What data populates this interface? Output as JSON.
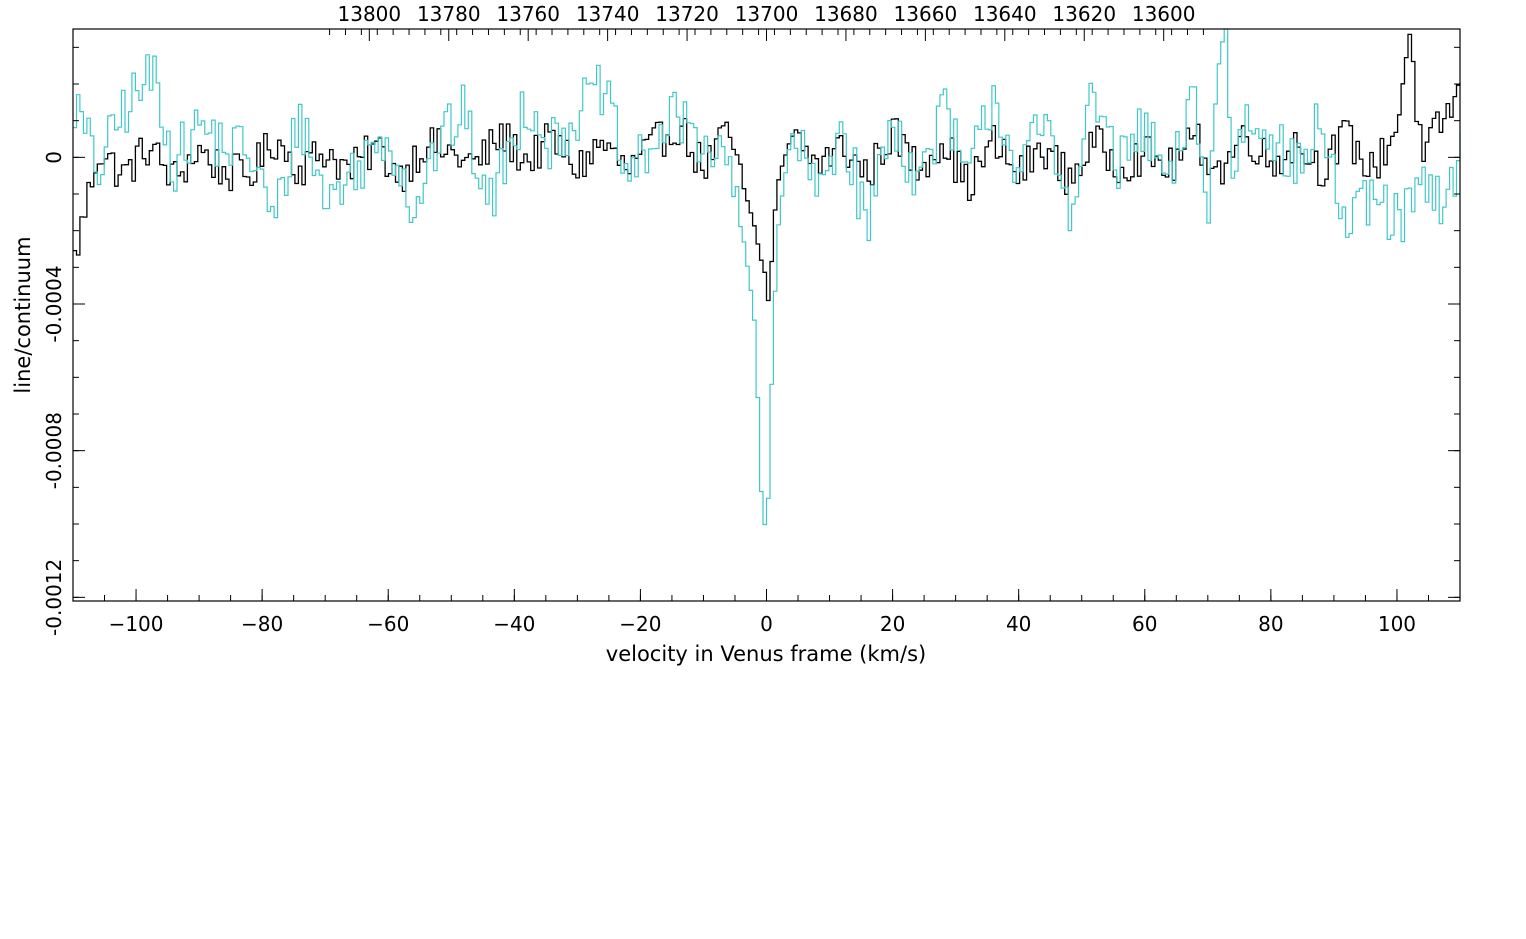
{
  "chart_data": {
    "type": "line",
    "title": "",
    "xlabel": "velocity in Venus frame (km/s)",
    "ylabel": "line/continuum",
    "top_axis_label": "",
    "xlim": [
      -110,
      110
    ],
    "ylim": [
      -0.00121,
      0.00035
    ],
    "x_ticks": [
      -100,
      -80,
      -60,
      -40,
      -20,
      0,
      20,
      40,
      60,
      80,
      100
    ],
    "x_tick_labels": [
      "−100",
      "−80",
      "−60",
      "−40",
      "−20",
      "0",
      "20",
      "40",
      "60",
      "80",
      "100"
    ],
    "y_ticks": [
      0,
      -0.0004,
      -0.0008,
      -0.0012
    ],
    "y_tick_labels": [
      "0",
      "-0.0004",
      "-0.0008",
      "-0.0012"
    ],
    "top_ticks": [
      13800,
      13780,
      13760,
      13740,
      13720,
      13700,
      13680,
      13660,
      13640,
      13620,
      13600
    ],
    "top_tick_labels": [
      "13800",
      "13780",
      "13760",
      "13740",
      "13720",
      "13700",
      "13680",
      "13660",
      "13640",
      "13620",
      "13600"
    ],
    "top_axis_velocity_at_13700": 0,
    "top_axis_km_per_unit": -0.63,
    "grid": false,
    "step_style": "histogram",
    "series": [
      {
        "color": "#000000",
        "x": [
          -110,
          -106,
          -102,
          -98,
          -94,
          -90,
          -86,
          -82,
          -78,
          -74,
          -70,
          -66,
          -62,
          -58,
          -54,
          -50,
          -46,
          -42,
          -38,
          -34,
          -30,
          -26,
          -22,
          -18,
          -14,
          -10,
          -6,
          -4,
          -2,
          -1,
          0,
          0.5,
          1,
          2,
          4,
          8,
          12,
          16,
          20,
          24,
          28,
          32,
          36,
          40,
          44,
          48,
          52,
          56,
          60,
          64,
          68,
          72,
          76,
          80,
          84,
          88,
          92,
          96,
          100,
          102,
          104,
          106,
          110
        ],
        "y": [
          -0.0003,
          2e-05,
          -5e-05,
          3e-05,
          -6e-05,
          2e-05,
          -4e-05,
          -5e-05,
          5e-05,
          -3e-05,
          2e-05,
          -4e-05,
          3e-05,
          -5e-05,
          4e-05,
          1e-05,
          -2e-05,
          6e-05,
          -1e-05,
          5e-05,
          -3e-05,
          4e-05,
          -4e-05,
          3e-05,
          9e-05,
          -3e-05,
          7e-05,
          -6e-05,
          -0.00018,
          -0.00027,
          -0.00033,
          -0.00044,
          -0.0002,
          -5e-05,
          6e-05,
          -2e-05,
          3e-05,
          -5e-05,
          7e-05,
          -3e-05,
          5e-05,
          -8e-05,
          4e-05,
          -5e-05,
          3e-05,
          -6e-05,
          4e-05,
          -2e-05,
          1e-05,
          -3e-05,
          5e-05,
          -4e-05,
          7e-05,
          -2e-05,
          4e-05,
          -3e-05,
          6e-05,
          -4e-05,
          8e-05,
          0.00035,
          -2e-05,
          6e-05,
          0.00018
        ]
      },
      {
        "color": "#40c8c8",
        "x": [
          -110,
          -106,
          -102,
          -97,
          -94,
          -90,
          -86,
          -82,
          -78,
          -74,
          -70,
          -66,
          -60,
          -56,
          -52,
          -48,
          -44,
          -38,
          -34,
          -30,
          -26,
          -22,
          -18,
          -14,
          -10,
          -6,
          -4,
          -3,
          -2,
          -1.5,
          -1,
          -0.5,
          0,
          0.5,
          1,
          1.5,
          2,
          4,
          8,
          12,
          16,
          20,
          24,
          28,
          32,
          36,
          40,
          44,
          48,
          52,
          56,
          60,
          64,
          68,
          70,
          72,
          73,
          74,
          76,
          80,
          84,
          88,
          92,
          96,
          100,
          104,
          108,
          110
        ],
        "y": [
          0.00016,
          -4e-05,
          0.00013,
          0.00023,
          -2e-05,
          9e-05,
          3e-05,
          2e-05,
          -0.00018,
          0.00012,
          -0.00012,
          -5e-05,
          7e-05,
          -0.00014,
          4e-05,
          0.00012,
          -0.00014,
          0.00016,
          3e-05,
          0.00012,
          0.00019,
          -6e-05,
          4e-05,
          0.00011,
          5e-05,
          -3e-05,
          -0.00018,
          -0.0003,
          -0.00042,
          -0.00058,
          -0.00088,
          -0.00097,
          -0.00104,
          -0.00084,
          -0.0005,
          -0.00032,
          -0.00016,
          7e-05,
          -0.0001,
          9e-05,
          -0.00019,
          0.00012,
          -8e-05,
          0.00013,
          -6e-05,
          0.00018,
          -4e-05,
          9e-05,
          -0.00013,
          0.00017,
          -3e-05,
          8e-05,
          -9e-05,
          0.00019,
          -0.00018,
          0.00032,
          0.00031,
          -5e-05,
          0.00011,
          9e-05,
          -5e-05,
          0.00011,
          -0.00021,
          -0.00011,
          -0.00018,
          -9e-05,
          -0.00014,
          2e-05
        ]
      }
    ]
  }
}
